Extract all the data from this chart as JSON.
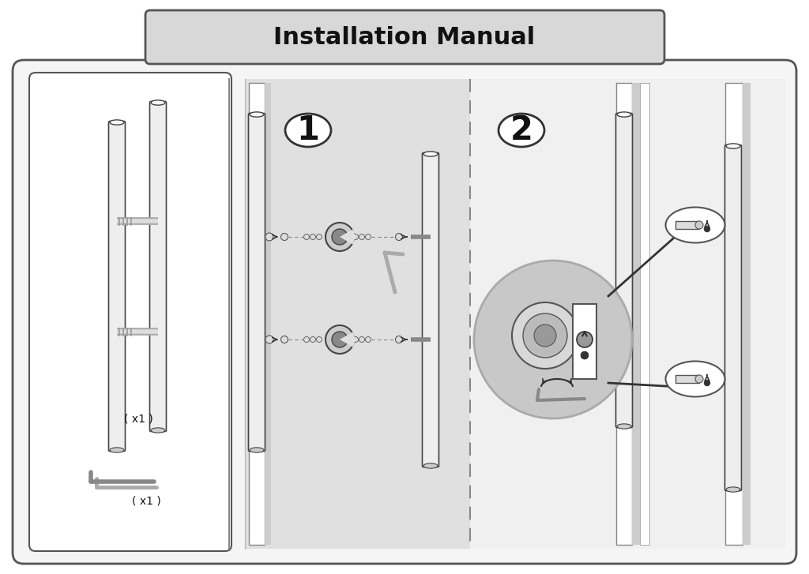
{
  "title": "Installation Manual",
  "bg_color": "#ffffff",
  "text_color": "#111111",
  "title_fontsize": 22,
  "step_fontsize": 30,
  "outer_bg": "#f5f5f5",
  "left_panel_bg": "#ffffff",
  "step1_bg": "#e0e0e0",
  "step2_bg": "#f0f0f0",
  "door_strip_color": "#d8d8d8",
  "handle_color": "#f0f0f0",
  "handle_border": "#444444",
  "mag_circle_color": "#c8c8c8",
  "screw_circle_color": "#ffffff"
}
